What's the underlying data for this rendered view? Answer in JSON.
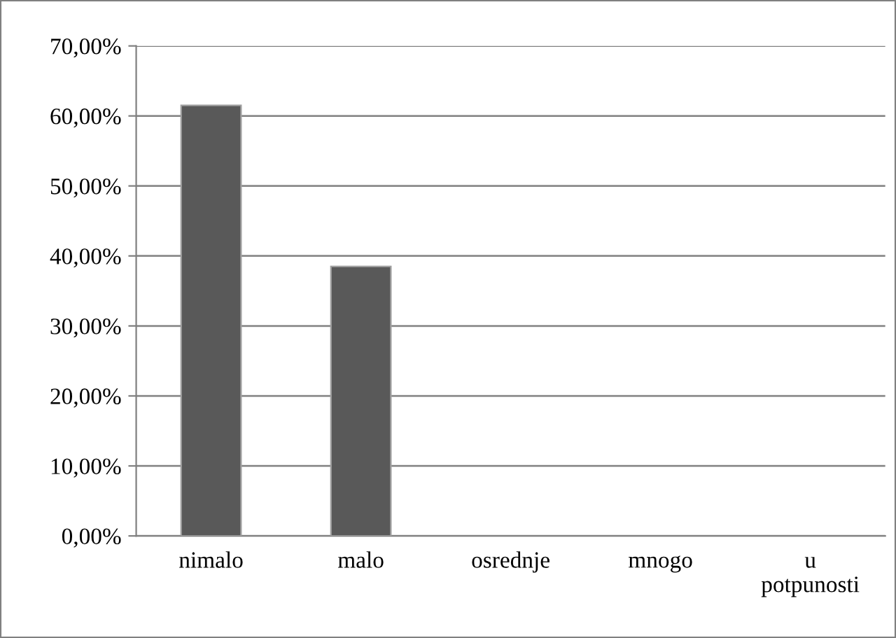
{
  "chart_data": {
    "type": "bar",
    "categories": [
      "nimalo",
      "malo",
      "osrednje",
      "mnogo",
      "u potpunosti"
    ],
    "values": [
      61.5,
      38.5,
      0,
      0,
      0
    ],
    "color": "#595959",
    "ylim": [
      0,
      70
    ],
    "yticks": [
      {
        "value": 0,
        "label": "0,00%"
      },
      {
        "value": 10,
        "label": "10,00%"
      },
      {
        "value": 20,
        "label": "20,00%"
      },
      {
        "value": 30,
        "label": "30,00%"
      },
      {
        "value": 40,
        "label": "40,00%"
      },
      {
        "value": 50,
        "label": "50,00%"
      },
      {
        "value": 60,
        "label": "60,00%"
      },
      {
        "value": 70,
        "label": "70,00%"
      }
    ],
    "grid": "y",
    "legend": false
  }
}
